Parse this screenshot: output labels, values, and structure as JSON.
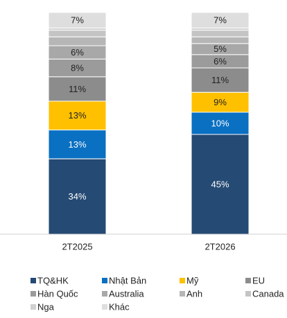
{
  "chart_data": {
    "type": "stacked_bar",
    "categories": [
      "2T2025",
      "2T2026"
    ],
    "ylim": [
      0,
      100
    ],
    "series": [
      {
        "name": "TQ&HK",
        "color": "#254a74",
        "values": [
          34,
          45
        ],
        "value_labels": [
          "34%",
          "45%"
        ]
      },
      {
        "name": "Nhật Bản",
        "color": "#0a70c2",
        "values": [
          13,
          10
        ],
        "value_labels": [
          "13%",
          "10%"
        ]
      },
      {
        "name": "Mỹ",
        "color": "#ffc000",
        "values": [
          13,
          9
        ],
        "value_labels": [
          "13%",
          "9%"
        ]
      },
      {
        "name": "EU",
        "color": "#8c8c8c",
        "values": [
          11,
          11
        ],
        "value_labels": [
          "11%",
          "11%"
        ]
      },
      {
        "name": "Hàn Quốc",
        "color": "#9b9b9b",
        "values": [
          8,
          6
        ],
        "value_labels": [
          "8%",
          "6%"
        ]
      },
      {
        "name": "Australia",
        "color": "#a8a8a8",
        "values": [
          6,
          5
        ],
        "value_labels": [
          "6%",
          "5%"
        ]
      },
      {
        "name": "Anh",
        "color": "#b6b6b6",
        "values": [
          4,
          3
        ]
      },
      {
        "name": "Canada",
        "color": "#c4c4c4",
        "values": [
          3,
          3
        ]
      },
      {
        "name": "Nga",
        "color": "#d0d0d0",
        "values": [
          1,
          1
        ]
      },
      {
        "name": "Khác",
        "color": "#dedede",
        "values": [
          7,
          7
        ],
        "value_labels": [
          "7%",
          "7%"
        ]
      }
    ]
  }
}
